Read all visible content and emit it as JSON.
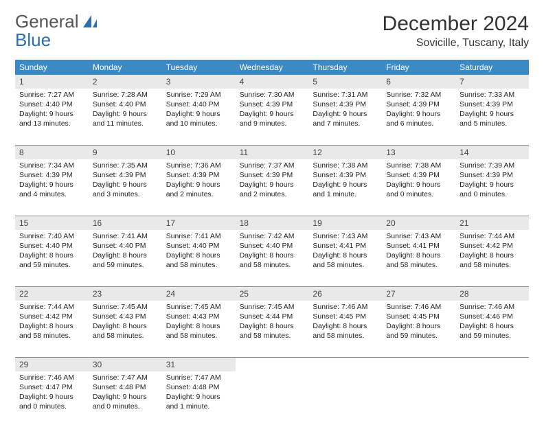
{
  "logo": {
    "line1": "General",
    "line2": "Blue"
  },
  "colors": {
    "header_bg": "#3b8ac4",
    "daynum_bg": "#e9e9e9",
    "logo_gray": "#666666",
    "logo_blue": "#2c6fb0",
    "sail": "#2c6fb0"
  },
  "title": "December 2024",
  "location": "Sovicille, Tuscany, Italy",
  "weekdays": [
    "Sunday",
    "Monday",
    "Tuesday",
    "Wednesday",
    "Thursday",
    "Friday",
    "Saturday"
  ],
  "weeks": [
    [
      {
        "n": 1,
        "sunrise": "7:27 AM",
        "sunset": "4:40 PM",
        "daylight": [
          "9 hours",
          "and 13 minutes."
        ]
      },
      {
        "n": 2,
        "sunrise": "7:28 AM",
        "sunset": "4:40 PM",
        "daylight": [
          "9 hours",
          "and 11 minutes."
        ]
      },
      {
        "n": 3,
        "sunrise": "7:29 AM",
        "sunset": "4:40 PM",
        "daylight": [
          "9 hours",
          "and 10 minutes."
        ]
      },
      {
        "n": 4,
        "sunrise": "7:30 AM",
        "sunset": "4:39 PM",
        "daylight": [
          "9 hours",
          "and 9 minutes."
        ]
      },
      {
        "n": 5,
        "sunrise": "7:31 AM",
        "sunset": "4:39 PM",
        "daylight": [
          "9 hours",
          "and 7 minutes."
        ]
      },
      {
        "n": 6,
        "sunrise": "7:32 AM",
        "sunset": "4:39 PM",
        "daylight": [
          "9 hours",
          "and 6 minutes."
        ]
      },
      {
        "n": 7,
        "sunrise": "7:33 AM",
        "sunset": "4:39 PM",
        "daylight": [
          "9 hours",
          "and 5 minutes."
        ]
      }
    ],
    [
      {
        "n": 8,
        "sunrise": "7:34 AM",
        "sunset": "4:39 PM",
        "daylight": [
          "9 hours",
          "and 4 minutes."
        ]
      },
      {
        "n": 9,
        "sunrise": "7:35 AM",
        "sunset": "4:39 PM",
        "daylight": [
          "9 hours",
          "and 3 minutes."
        ]
      },
      {
        "n": 10,
        "sunrise": "7:36 AM",
        "sunset": "4:39 PM",
        "daylight": [
          "9 hours",
          "and 2 minutes."
        ]
      },
      {
        "n": 11,
        "sunrise": "7:37 AM",
        "sunset": "4:39 PM",
        "daylight": [
          "9 hours",
          "and 2 minutes."
        ]
      },
      {
        "n": 12,
        "sunrise": "7:38 AM",
        "sunset": "4:39 PM",
        "daylight": [
          "9 hours",
          "and 1 minute."
        ]
      },
      {
        "n": 13,
        "sunrise": "7:38 AM",
        "sunset": "4:39 PM",
        "daylight": [
          "9 hours",
          "and 0 minutes."
        ]
      },
      {
        "n": 14,
        "sunrise": "7:39 AM",
        "sunset": "4:39 PM",
        "daylight": [
          "9 hours",
          "and 0 minutes."
        ]
      }
    ],
    [
      {
        "n": 15,
        "sunrise": "7:40 AM",
        "sunset": "4:40 PM",
        "daylight": [
          "8 hours",
          "and 59 minutes."
        ]
      },
      {
        "n": 16,
        "sunrise": "7:41 AM",
        "sunset": "4:40 PM",
        "daylight": [
          "8 hours",
          "and 59 minutes."
        ]
      },
      {
        "n": 17,
        "sunrise": "7:41 AM",
        "sunset": "4:40 PM",
        "daylight": [
          "8 hours",
          "and 58 minutes."
        ]
      },
      {
        "n": 18,
        "sunrise": "7:42 AM",
        "sunset": "4:40 PM",
        "daylight": [
          "8 hours",
          "and 58 minutes."
        ]
      },
      {
        "n": 19,
        "sunrise": "7:43 AM",
        "sunset": "4:41 PM",
        "daylight": [
          "8 hours",
          "and 58 minutes."
        ]
      },
      {
        "n": 20,
        "sunrise": "7:43 AM",
        "sunset": "4:41 PM",
        "daylight": [
          "8 hours",
          "and 58 minutes."
        ]
      },
      {
        "n": 21,
        "sunrise": "7:44 AM",
        "sunset": "4:42 PM",
        "daylight": [
          "8 hours",
          "and 58 minutes."
        ]
      }
    ],
    [
      {
        "n": 22,
        "sunrise": "7:44 AM",
        "sunset": "4:42 PM",
        "daylight": [
          "8 hours",
          "and 58 minutes."
        ]
      },
      {
        "n": 23,
        "sunrise": "7:45 AM",
        "sunset": "4:43 PM",
        "daylight": [
          "8 hours",
          "and 58 minutes."
        ]
      },
      {
        "n": 24,
        "sunrise": "7:45 AM",
        "sunset": "4:43 PM",
        "daylight": [
          "8 hours",
          "and 58 minutes."
        ]
      },
      {
        "n": 25,
        "sunrise": "7:45 AM",
        "sunset": "4:44 PM",
        "daylight": [
          "8 hours",
          "and 58 minutes."
        ]
      },
      {
        "n": 26,
        "sunrise": "7:46 AM",
        "sunset": "4:45 PM",
        "daylight": [
          "8 hours",
          "and 58 minutes."
        ]
      },
      {
        "n": 27,
        "sunrise": "7:46 AM",
        "sunset": "4:45 PM",
        "daylight": [
          "8 hours",
          "and 59 minutes."
        ]
      },
      {
        "n": 28,
        "sunrise": "7:46 AM",
        "sunset": "4:46 PM",
        "daylight": [
          "8 hours",
          "and 59 minutes."
        ]
      }
    ],
    [
      {
        "n": 29,
        "sunrise": "7:46 AM",
        "sunset": "4:47 PM",
        "daylight": [
          "9 hours",
          "and 0 minutes."
        ]
      },
      {
        "n": 30,
        "sunrise": "7:47 AM",
        "sunset": "4:48 PM",
        "daylight": [
          "9 hours",
          "and 0 minutes."
        ]
      },
      {
        "n": 31,
        "sunrise": "7:47 AM",
        "sunset": "4:48 PM",
        "daylight": [
          "9 hours",
          "and 1 minute."
        ]
      },
      null,
      null,
      null,
      null
    ]
  ],
  "labels": {
    "sunrise": "Sunrise:",
    "sunset": "Sunset:",
    "daylight": "Daylight:"
  }
}
